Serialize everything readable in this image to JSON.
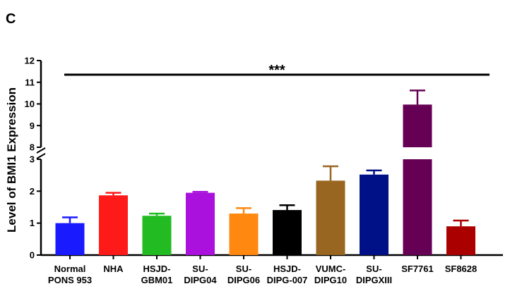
{
  "panel_label": "C",
  "chart_data": {
    "type": "bar",
    "title": "",
    "xlabel": "",
    "ylabel": "Level of BMI1 Expression",
    "y_axis_break": {
      "lower_range": [
        0,
        3
      ],
      "upper_range": [
        8,
        12
      ]
    },
    "lower_ticks": [
      "0",
      "1",
      "2",
      "3"
    ],
    "upper_ticks": [
      "8",
      "9",
      "10",
      "11",
      "12"
    ],
    "significance": "***",
    "categories": [
      [
        "Normal",
        "PONS 953"
      ],
      [
        "NHA"
      ],
      [
        "HSJD-",
        "GBM01"
      ],
      [
        "SU-",
        "DIPG04"
      ],
      [
        "SU-",
        "DIPG06"
      ],
      [
        "HSJD-",
        "DIPG-007"
      ],
      [
        "VUMC-",
        "DIPG10"
      ],
      [
        "SU-",
        "DIPGXIII"
      ],
      [
        "SF7761"
      ],
      [
        "SF8628"
      ]
    ],
    "values": [
      1.0,
      1.87,
      1.23,
      1.95,
      1.3,
      1.41,
      2.33,
      2.52,
      9.97,
      0.9
    ],
    "errors": [
      0.18,
      0.08,
      0.07,
      0.03,
      0.17,
      0.15,
      0.45,
      0.13,
      0.65,
      0.18
    ],
    "colors": [
      "#1a1aff",
      "#ff1a1a",
      "#22bb22",
      "#aa11dd",
      "#ff8811",
      "#000000",
      "#996622",
      "#001188",
      "#660055",
      "#aa0000"
    ]
  }
}
